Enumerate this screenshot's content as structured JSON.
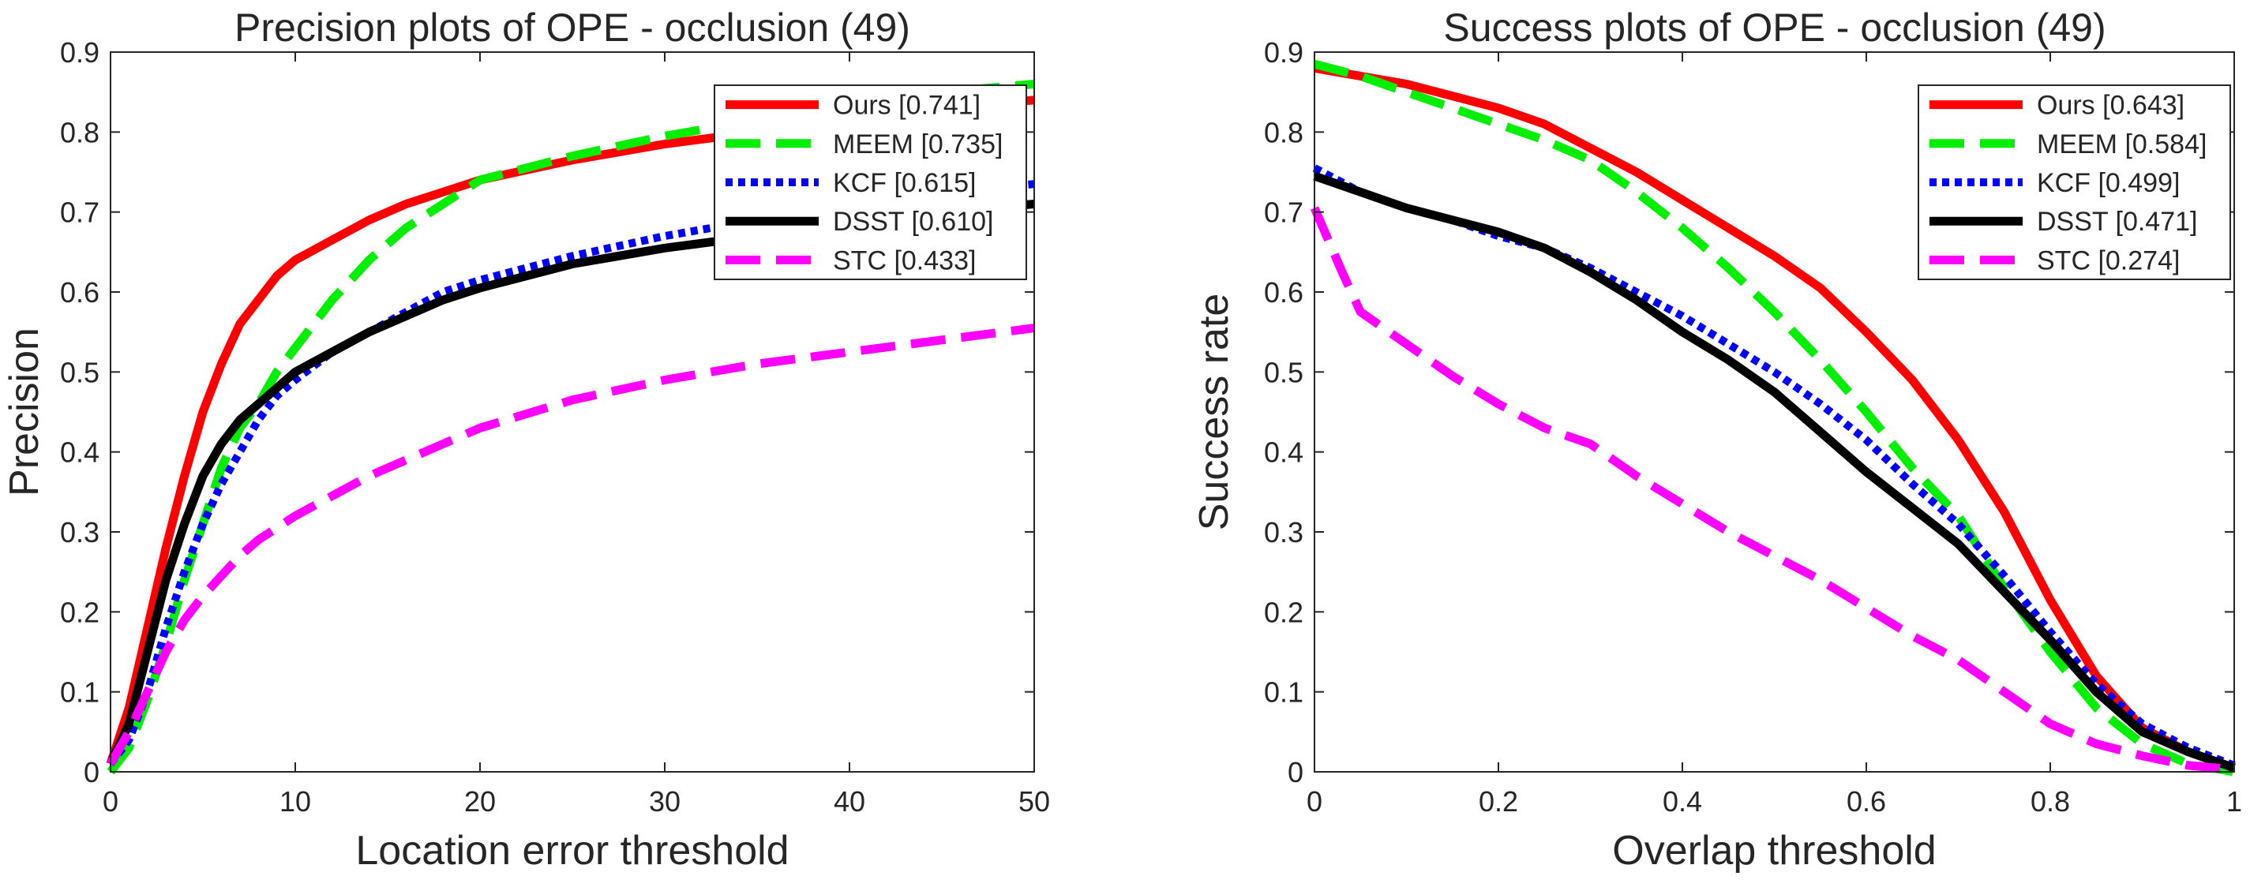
{
  "chart_data": [
    {
      "type": "line",
      "title": "Precision plots of OPE - occlusion (49)",
      "xlabel": "Location error threshold",
      "ylabel": "Precision",
      "xlim": [
        0,
        50
      ],
      "ylim": [
        0,
        0.9
      ],
      "xticks": [
        0,
        10,
        20,
        30,
        40,
        50
      ],
      "yticks": [
        0,
        0.1,
        0.2,
        0.3,
        0.4,
        0.5,
        0.6,
        0.7,
        0.8,
        0.9
      ],
      "xtick_labels": [
        "0",
        "10",
        "20",
        "30",
        "40",
        "50"
      ],
      "ytick_labels": [
        "0",
        "0.1",
        "0.2",
        "0.3",
        "0.4",
        "0.5",
        "0.6",
        "0.7",
        "0.8",
        "0.9"
      ],
      "grid": false,
      "legend_position": "top-right",
      "series": [
        {
          "name": "Ours",
          "label": "Ours [0.741]",
          "color": "#ff0000",
          "style": "solid",
          "x": [
            0,
            1,
            2,
            3,
            4,
            5,
            6,
            7,
            8,
            9,
            10,
            12,
            14,
            16,
            18,
            20,
            25,
            30,
            35,
            40,
            45,
            50
          ],
          "y": [
            0.01,
            0.08,
            0.18,
            0.28,
            0.37,
            0.45,
            0.51,
            0.56,
            0.59,
            0.62,
            0.64,
            0.665,
            0.69,
            0.71,
            0.725,
            0.74,
            0.765,
            0.785,
            0.8,
            0.815,
            0.83,
            0.84
          ]
        },
        {
          "name": "MEEM",
          "label": "MEEM [0.735]",
          "color": "#00ee00",
          "style": "dashed",
          "x": [
            0,
            1,
            2,
            3,
            4,
            5,
            6,
            7,
            8,
            9,
            10,
            12,
            14,
            16,
            18,
            20,
            25,
            30,
            35,
            40,
            45,
            50
          ],
          "y": [
            0.0,
            0.03,
            0.09,
            0.16,
            0.24,
            0.31,
            0.38,
            0.43,
            0.46,
            0.5,
            0.53,
            0.59,
            0.64,
            0.68,
            0.71,
            0.74,
            0.77,
            0.795,
            0.815,
            0.83,
            0.85,
            0.86
          ]
        },
        {
          "name": "KCF",
          "label": "KCF [0.615]",
          "color": "#0000ff",
          "style": "dotted",
          "x": [
            0,
            1,
            2,
            3,
            4,
            5,
            6,
            7,
            8,
            9,
            10,
            12,
            14,
            16,
            18,
            20,
            25,
            30,
            35,
            40,
            45,
            50
          ],
          "y": [
            0.01,
            0.04,
            0.1,
            0.18,
            0.25,
            0.31,
            0.36,
            0.4,
            0.44,
            0.47,
            0.49,
            0.525,
            0.55,
            0.575,
            0.6,
            0.615,
            0.645,
            0.67,
            0.69,
            0.71,
            0.725,
            0.735
          ]
        },
        {
          "name": "DSST",
          "label": "DSST [0.610]",
          "color": "#000000",
          "style": "solid",
          "x": [
            0,
            1,
            2,
            3,
            4,
            5,
            6,
            7,
            8,
            9,
            10,
            12,
            14,
            16,
            18,
            20,
            25,
            30,
            35,
            40,
            45,
            50
          ],
          "y": [
            0.01,
            0.06,
            0.15,
            0.24,
            0.31,
            0.37,
            0.41,
            0.44,
            0.46,
            0.48,
            0.5,
            0.525,
            0.55,
            0.57,
            0.59,
            0.605,
            0.635,
            0.655,
            0.67,
            0.685,
            0.7,
            0.71
          ]
        },
        {
          "name": "STC",
          "label": "STC [0.433]",
          "color": "#ff00ff",
          "style": "dashed",
          "x": [
            0,
            1,
            2,
            3,
            4,
            5,
            6,
            7,
            8,
            9,
            10,
            12,
            14,
            16,
            18,
            20,
            25,
            30,
            35,
            40,
            45,
            50
          ],
          "y": [
            0.01,
            0.05,
            0.1,
            0.15,
            0.19,
            0.22,
            0.245,
            0.27,
            0.29,
            0.305,
            0.32,
            0.345,
            0.37,
            0.39,
            0.41,
            0.43,
            0.465,
            0.49,
            0.51,
            0.525,
            0.54,
            0.555
          ]
        }
      ]
    },
    {
      "type": "line",
      "title": "Success plots of OPE - occlusion (49)",
      "xlabel": "Overlap threshold",
      "ylabel": "Success rate",
      "xlim": [
        0,
        1
      ],
      "ylim": [
        0,
        0.9
      ],
      "xticks": [
        0,
        0.2,
        0.4,
        0.6,
        0.8,
        1
      ],
      "yticks": [
        0,
        0.1,
        0.2,
        0.3,
        0.4,
        0.5,
        0.6,
        0.7,
        0.8,
        0.9
      ],
      "xtick_labels": [
        "0",
        "0.2",
        "0.4",
        "0.6",
        "0.8",
        "1"
      ],
      "ytick_labels": [
        "0",
        "0.1",
        "0.2",
        "0.3",
        "0.4",
        "0.5",
        "0.6",
        "0.7",
        "0.8",
        "0.9"
      ],
      "grid": false,
      "legend_position": "top-right",
      "series": [
        {
          "name": "Ours",
          "label": "Ours [0.643]",
          "color": "#ff0000",
          "style": "solid",
          "x": [
            0,
            0.05,
            0.1,
            0.15,
            0.2,
            0.25,
            0.3,
            0.35,
            0.4,
            0.45,
            0.5,
            0.55,
            0.6,
            0.65,
            0.7,
            0.75,
            0.8,
            0.85,
            0.9,
            0.95,
            1
          ],
          "y": [
            0.88,
            0.87,
            0.86,
            0.845,
            0.83,
            0.81,
            0.78,
            0.75,
            0.715,
            0.68,
            0.645,
            0.605,
            0.55,
            0.49,
            0.415,
            0.325,
            0.215,
            0.12,
            0.055,
            0.025,
            0.005
          ]
        },
        {
          "name": "MEEM",
          "label": "MEEM [0.584]",
          "color": "#00ee00",
          "style": "dashed",
          "x": [
            0,
            0.05,
            0.1,
            0.15,
            0.2,
            0.25,
            0.3,
            0.35,
            0.4,
            0.45,
            0.5,
            0.55,
            0.6,
            0.65,
            0.7,
            0.75,
            0.8,
            0.85,
            0.9,
            0.95,
            1
          ],
          "y": [
            0.885,
            0.87,
            0.85,
            0.83,
            0.81,
            0.79,
            0.765,
            0.725,
            0.68,
            0.63,
            0.575,
            0.515,
            0.45,
            0.38,
            0.32,
            0.23,
            0.15,
            0.08,
            0.035,
            0.01,
            0.0
          ]
        },
        {
          "name": "KCF",
          "label": "KCF [0.499]",
          "color": "#0000ff",
          "style": "dotted",
          "x": [
            0,
            0.05,
            0.1,
            0.15,
            0.2,
            0.25,
            0.3,
            0.35,
            0.4,
            0.45,
            0.5,
            0.55,
            0.6,
            0.65,
            0.7,
            0.75,
            0.8,
            0.85,
            0.9,
            0.95,
            1
          ],
          "y": [
            0.755,
            0.725,
            0.705,
            0.69,
            0.67,
            0.655,
            0.63,
            0.6,
            0.57,
            0.535,
            0.5,
            0.46,
            0.415,
            0.36,
            0.31,
            0.245,
            0.175,
            0.11,
            0.06,
            0.03,
            0.008
          ]
        },
        {
          "name": "DSST",
          "label": "DSST [0.471]",
          "color": "#000000",
          "style": "solid",
          "x": [
            0,
            0.05,
            0.1,
            0.15,
            0.2,
            0.25,
            0.3,
            0.35,
            0.4,
            0.45,
            0.5,
            0.55,
            0.6,
            0.65,
            0.7,
            0.75,
            0.8,
            0.85,
            0.9,
            0.95,
            1
          ],
          "y": [
            0.745,
            0.725,
            0.705,
            0.69,
            0.675,
            0.655,
            0.625,
            0.59,
            0.55,
            0.515,
            0.475,
            0.425,
            0.375,
            0.33,
            0.285,
            0.225,
            0.165,
            0.1,
            0.05,
            0.025,
            0.005
          ]
        },
        {
          "name": "STC",
          "label": "STC [0.274]",
          "color": "#ff00ff",
          "style": "dashed",
          "x": [
            0,
            0.03,
            0.05,
            0.1,
            0.15,
            0.2,
            0.25,
            0.3,
            0.35,
            0.4,
            0.45,
            0.5,
            0.55,
            0.6,
            0.65,
            0.7,
            0.75,
            0.8,
            0.85,
            0.9,
            0.95,
            1
          ],
          "y": [
            0.705,
            0.625,
            0.575,
            0.535,
            0.495,
            0.46,
            0.43,
            0.41,
            0.37,
            0.335,
            0.3,
            0.27,
            0.24,
            0.205,
            0.17,
            0.14,
            0.1,
            0.06,
            0.035,
            0.02,
            0.008,
            0.003
          ]
        }
      ]
    }
  ]
}
